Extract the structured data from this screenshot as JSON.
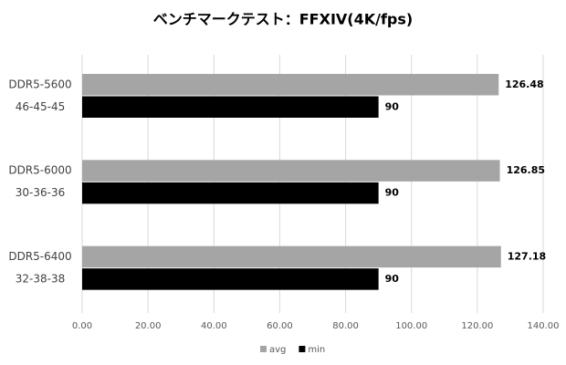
{
  "chart_data": {
    "type": "hbar",
    "title": "ベンチマークテスト：FFXIV(4K/fps)",
    "categories": [
      [
        "DDR5-5600",
        "46-45-45"
      ],
      [
        "DDR5-6000",
        "30-36-36"
      ],
      [
        "DDR5-6400",
        "32-38-38"
      ]
    ],
    "series": [
      {
        "name": "avg",
        "color": "#a5a5a5",
        "values": [
          126.48,
          126.85,
          127.18
        ]
      },
      {
        "name": "min",
        "color": "#000000",
        "values": [
          90,
          90,
          90
        ]
      }
    ],
    "xlim": [
      0,
      140
    ],
    "xticks": [
      {
        "value": 0,
        "label": "0.00"
      },
      {
        "value": 20,
        "label": "20.00"
      },
      {
        "value": 40,
        "label": "40.00"
      },
      {
        "value": 60,
        "label": "60.00"
      },
      {
        "value": 80,
        "label": "80.00"
      },
      {
        "value": 100,
        "label": "100.00"
      },
      {
        "value": 120,
        "label": "120.00"
      },
      {
        "value": 140,
        "label": "140.00"
      }
    ],
    "grid": true,
    "legend": "bottom"
  }
}
